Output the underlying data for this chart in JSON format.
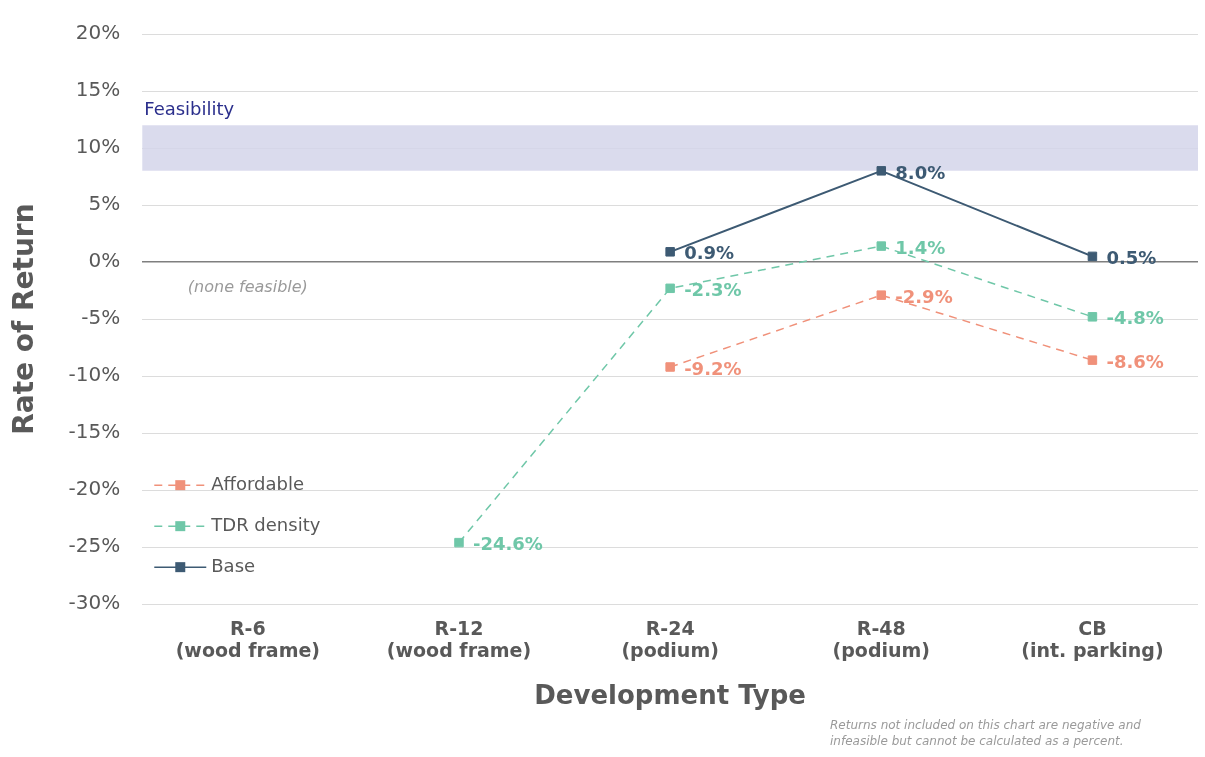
{
  "chart_data": {
    "type": "line",
    "categories": [
      "R-6\n(wood frame)",
      "R-12\n(wood frame)",
      "R-24\n(podium)",
      "R-48\n(podium)",
      "CB\n(int. parking)"
    ],
    "xlabel": "Development Type",
    "ylabel": "Rate of Return",
    "ylim": [
      -30,
      20
    ],
    "yticks": [
      {
        "value": -30,
        "label": "-30%"
      },
      {
        "value": -25,
        "label": "-25%"
      },
      {
        "value": -20,
        "label": "-20%"
      },
      {
        "value": -15,
        "label": "-15%"
      },
      {
        "value": -10,
        "label": "-10%"
      },
      {
        "value": -5,
        "label": "-5%"
      },
      {
        "value": 0,
        "label": "0%"
      },
      {
        "value": 5,
        "label": "5%"
      },
      {
        "value": 10,
        "label": "10%"
      },
      {
        "value": 15,
        "label": "15%"
      },
      {
        "value": 20,
        "label": "20%"
      }
    ],
    "grid": "y",
    "marker": "square",
    "legend": "bottom left",
    "series": [
      {
        "name": "Affordable",
        "color": "#f0917a",
        "line_style": "dashed",
        "values": [
          null,
          null,
          -9.2,
          -2.9,
          -8.6
        ],
        "value_labels": [
          null,
          null,
          "-9.2%",
          "-2.9%",
          "-8.6%"
        ]
      },
      {
        "name": "TDR density",
        "color": "#6fc7a8",
        "line_style": "dashed",
        "values": [
          null,
          -24.6,
          -2.3,
          1.4,
          -4.8
        ],
        "value_labels": [
          null,
          "-24.6%",
          "-2.3%",
          "1.4%",
          "-4.8%"
        ]
      },
      {
        "name": "Base",
        "color": "#3d5a73",
        "line_style": "solid",
        "values": [
          null,
          null,
          0.9,
          8.0,
          0.5
        ],
        "value_labels": [
          null,
          null,
          "0.9%",
          "8.0%",
          "0.5%"
        ]
      }
    ],
    "bands": [
      {
        "axis": "y",
        "from": 8,
        "to": 12,
        "label": "Feasibility",
        "color": "#d4d5ea"
      }
    ],
    "annotations": [
      "(none feasible)",
      "Returns not included on this chart are negative and\ninfeasible but cannot be calculated as a percent."
    ]
  }
}
